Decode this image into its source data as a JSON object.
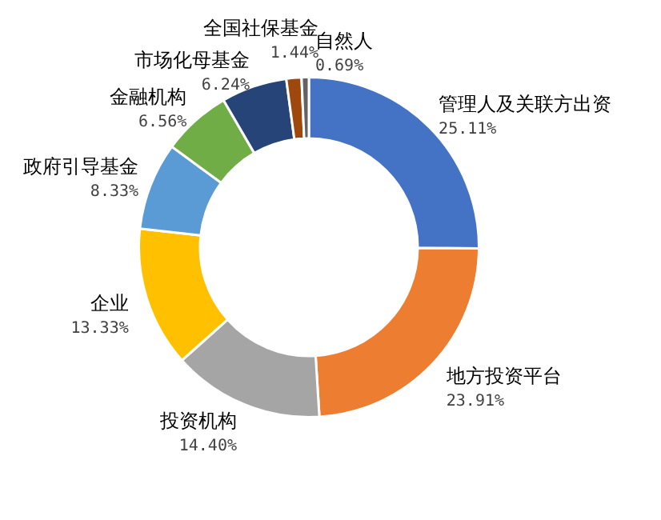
{
  "chart_data": {
    "type": "donut",
    "categories": [
      "管理人及关联方出资",
      "地方投资平台",
      "投资机构",
      "企业",
      "政府引导基金",
      "金融机构",
      "市场化母基金",
      "全国社保基金",
      "自然人"
    ],
    "values": [
      25.11,
      23.91,
      14.4,
      13.33,
      8.33,
      6.56,
      6.24,
      1.44,
      0.69
    ],
    "value_labels": [
      "25.11%",
      "23.91%",
      "14.40%",
      "13.33%",
      "8.33%",
      "6.56%",
      "6.24%",
      "1.44%",
      "0.69%"
    ],
    "colors": [
      "#4472c4",
      "#ed7d31",
      "#a5a5a5",
      "#ffc000",
      "#5b9bd5",
      "#70ad47",
      "#264478",
      "#9e480e",
      "#636363"
    ],
    "legend": false
  }
}
